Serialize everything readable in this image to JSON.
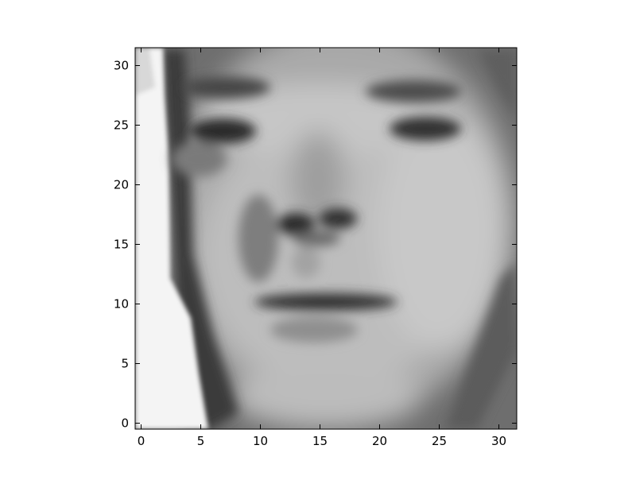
{
  "chart_data": {
    "type": "heatmap",
    "title": "",
    "xlabel": "",
    "ylabel": "",
    "colormap": "gray",
    "interpolation": "smooth",
    "image_shape": [
      32,
      32
    ],
    "image_content": "grayscale face",
    "x_range": [
      -0.5,
      31.5
    ],
    "y_range": [
      31.5,
      -0.5
    ],
    "x_ticks": [
      0,
      5,
      10,
      15,
      20,
      25,
      30
    ],
    "y_ticks": [
      0,
      5,
      10,
      15,
      20,
      25,
      30
    ],
    "x_tick_labels": [
      "0",
      "5",
      "10",
      "15",
      "20",
      "25",
      "30"
    ],
    "y_tick_labels": [
      "0",
      "5",
      "10",
      "15",
      "20",
      "25",
      "30"
    ],
    "grid": false,
    "legend": "none"
  }
}
